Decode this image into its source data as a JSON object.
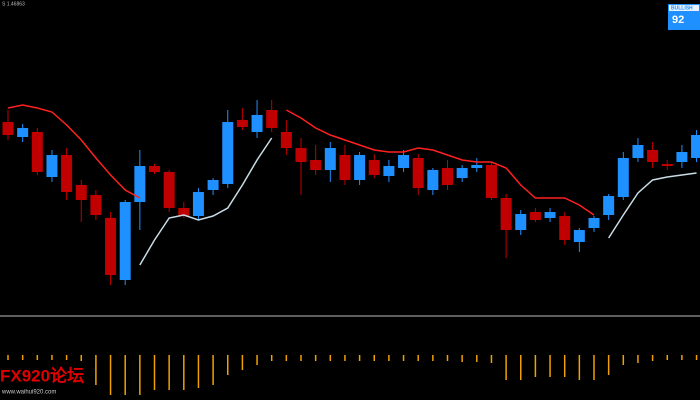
{
  "header_text": "S 1.46863",
  "badge": {
    "label": "BULLISH",
    "value": 92
  },
  "watermark": {
    "logo": "FX920论坛",
    "url": "www.waihui920.com"
  },
  "chart_data": [
    {
      "type": "candlestick",
      "up_color": "#1e90ff",
      "down_color": "#c00000",
      "ylim": [
        0,
        400
      ],
      "candles": [
        {
          "open": 278,
          "high": 290,
          "low": 260,
          "close": 265
        },
        {
          "open": 263,
          "high": 276,
          "low": 258,
          "close": 272
        },
        {
          "open": 268,
          "high": 272,
          "low": 225,
          "close": 228
        },
        {
          "open": 223,
          "high": 250,
          "low": 218,
          "close": 245
        },
        {
          "open": 245,
          "high": 252,
          "low": 200,
          "close": 208
        },
        {
          "open": 215,
          "high": 220,
          "low": 178,
          "close": 200
        },
        {
          "open": 205,
          "high": 210,
          "low": 180,
          "close": 185
        },
        {
          "open": 182,
          "high": 188,
          "low": 115,
          "close": 125
        },
        {
          "open": 120,
          "high": 200,
          "low": 115,
          "close": 198
        },
        {
          "open": 198,
          "high": 250,
          "low": 170,
          "close": 234
        },
        {
          "open": 234,
          "high": 236,
          "low": 226,
          "close": 228
        },
        {
          "open": 228,
          "high": 230,
          "low": 188,
          "close": 192
        },
        {
          "open": 192,
          "high": 198,
          "low": 182,
          "close": 184
        },
        {
          "open": 184,
          "high": 212,
          "low": 180,
          "close": 208
        },
        {
          "open": 210,
          "high": 222,
          "low": 205,
          "close": 220
        },
        {
          "open": 216,
          "high": 290,
          "low": 212,
          "close": 278
        },
        {
          "open": 280,
          "high": 292,
          "low": 270,
          "close": 273
        },
        {
          "open": 268,
          "high": 300,
          "low": 262,
          "close": 285
        },
        {
          "open": 290,
          "high": 300,
          "low": 268,
          "close": 272
        },
        {
          "open": 268,
          "high": 280,
          "low": 245,
          "close": 252
        },
        {
          "open": 252,
          "high": 262,
          "low": 205,
          "close": 238
        },
        {
          "open": 240,
          "high": 255,
          "low": 225,
          "close": 230
        },
        {
          "open": 230,
          "high": 258,
          "low": 218,
          "close": 252
        },
        {
          "open": 245,
          "high": 255,
          "low": 215,
          "close": 220
        },
        {
          "open": 220,
          "high": 248,
          "low": 215,
          "close": 245
        },
        {
          "open": 240,
          "high": 246,
          "low": 222,
          "close": 225
        },
        {
          "open": 224,
          "high": 240,
          "low": 218,
          "close": 234
        },
        {
          "open": 232,
          "high": 250,
          "low": 228,
          "close": 245
        },
        {
          "open": 242,
          "high": 246,
          "low": 205,
          "close": 212
        },
        {
          "open": 210,
          "high": 232,
          "low": 205,
          "close": 230
        },
        {
          "open": 232,
          "high": 240,
          "low": 210,
          "close": 215
        },
        {
          "open": 222,
          "high": 235,
          "low": 218,
          "close": 232
        },
        {
          "open": 232,
          "high": 242,
          "low": 228,
          "close": 235
        },
        {
          "open": 235,
          "high": 238,
          "low": 200,
          "close": 202
        },
        {
          "open": 202,
          "high": 206,
          "low": 142,
          "close": 170
        },
        {
          "open": 170,
          "high": 190,
          "low": 165,
          "close": 186
        },
        {
          "open": 188,
          "high": 192,
          "low": 178,
          "close": 180
        },
        {
          "open": 182,
          "high": 192,
          "low": 178,
          "close": 188
        },
        {
          "open": 184,
          "high": 188,
          "low": 155,
          "close": 160
        },
        {
          "open": 158,
          "high": 172,
          "low": 148,
          "close": 170
        },
        {
          "open": 172,
          "high": 184,
          "low": 168,
          "close": 182
        },
        {
          "open": 185,
          "high": 206,
          "low": 180,
          "close": 204
        },
        {
          "open": 203,
          "high": 248,
          "low": 200,
          "close": 242
        },
        {
          "open": 242,
          "high": 262,
          "low": 238,
          "close": 255
        },
        {
          "open": 250,
          "high": 258,
          "low": 232,
          "close": 238
        },
        {
          "open": 236,
          "high": 240,
          "low": 230,
          "close": 234
        },
        {
          "open": 238,
          "high": 255,
          "low": 232,
          "close": 248
        },
        {
          "open": 242,
          "high": 270,
          "low": 238,
          "close": 265
        }
      ],
      "lines": [
        {
          "color": "#ff2020",
          "values": [
            292,
            295,
            292,
            288,
            275,
            260,
            242,
            225,
            210,
            202,
            null,
            null,
            null,
            null,
            null,
            null,
            null,
            null,
            null,
            290,
            282,
            272,
            265,
            260,
            255,
            250,
            248,
            248,
            252,
            250,
            245,
            240,
            238,
            238,
            232,
            215,
            202,
            202,
            202,
            195,
            185,
            null,
            null,
            null,
            null,
            null,
            null,
            null
          ]
        },
        {
          "color": "#c8dce6",
          "values": [
            null,
            null,
            null,
            null,
            null,
            null,
            null,
            null,
            null,
            135,
            160,
            182,
            185,
            180,
            184,
            192,
            215,
            240,
            262,
            null,
            null,
            null,
            null,
            null,
            null,
            null,
            null,
            null,
            null,
            null,
            null,
            null,
            null,
            null,
            null,
            null,
            null,
            null,
            null,
            null,
            null,
            162,
            185,
            207,
            220,
            223,
            225,
            227
          ]
        }
      ]
    },
    {
      "type": "bar",
      "color": "#f0a000",
      "ylim": [
        -45,
        0
      ],
      "values": [
        -5,
        -5,
        -5,
        -5,
        -5,
        -6,
        -30,
        -40,
        -40,
        -40,
        -35,
        -35,
        -35,
        -33,
        -30,
        -20,
        -15,
        -10,
        -6,
        -6,
        -6,
        -6,
        -6,
        -6,
        -6,
        -6,
        -6,
        -6,
        -6,
        -6,
        -6,
        -7,
        -7,
        -8,
        -25,
        -25,
        -22,
        -22,
        -22,
        -25,
        -25,
        -20,
        -10,
        -8,
        -6,
        -5,
        -5,
        -5
      ]
    }
  ]
}
